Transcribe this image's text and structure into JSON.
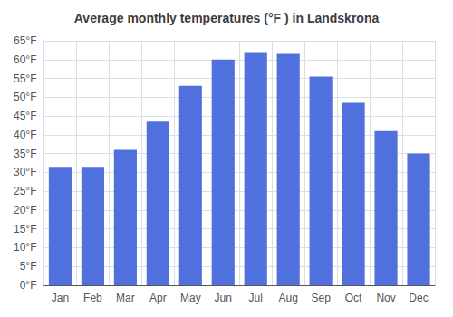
{
  "chart_data": {
    "type": "bar",
    "title": "Average monthly temperatures (°F ) in Landskrona",
    "categories": [
      "Jan",
      "Feb",
      "Mar",
      "Apr",
      "May",
      "Jun",
      "Jul",
      "Aug",
      "Sep",
      "Oct",
      "Nov",
      "Dec"
    ],
    "values": [
      31.5,
      31.5,
      36,
      43.5,
      53,
      60,
      62,
      61.5,
      55.5,
      48.5,
      41,
      35
    ],
    "ylim": [
      0,
      65
    ],
    "yticks": [
      {
        "value": 0,
        "label": "0°F"
      },
      {
        "value": 5,
        "label": "5°F"
      },
      {
        "value": 10,
        "label": "10°F"
      },
      {
        "value": 15,
        "label": "15°F"
      },
      {
        "value": 20,
        "label": "20°F"
      },
      {
        "value": 25,
        "label": "25°F"
      },
      {
        "value": 30,
        "label": "30°F"
      },
      {
        "value": 35,
        "label": "35°F"
      },
      {
        "value": 40,
        "label": "40°F"
      },
      {
        "value": 45,
        "label": "45°F"
      },
      {
        "value": 50,
        "label": "50°F"
      },
      {
        "value": 55,
        "label": "55°F"
      },
      {
        "value": 60,
        "label": "60°F"
      },
      {
        "value": 65,
        "label": "65°F"
      }
    ],
    "grid": true
  }
}
